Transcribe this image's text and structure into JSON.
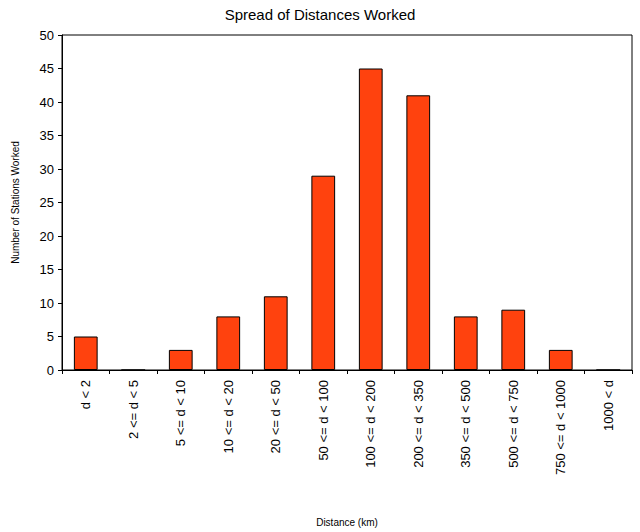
{
  "chart_data": {
    "type": "bar",
    "title": "Spread of Distances Worked",
    "x_label": "Distance (km)",
    "y_label": "Number of Stations Worked",
    "categories": [
      "d < 2",
      "2 <= d < 5",
      "5 <= d < 10",
      "10 <= d < 20",
      "20 <= d < 50",
      "50 <= d < 100",
      "100 <= d < 200",
      "200 <= d < 350",
      "350 <= d < 500",
      "500 <= d < 750",
      "750 <= d < 1000",
      "1000 < d"
    ],
    "values": [
      5,
      0,
      3,
      8,
      11,
      29,
      45,
      41,
      8,
      9,
      3,
      0
    ],
    "color": "#ff420e",
    "ylim": [
      0,
      50
    ],
    "yticks": [
      0,
      5,
      10,
      15,
      20,
      25,
      30,
      35,
      40,
      45,
      50
    ],
    "grid": false
  }
}
